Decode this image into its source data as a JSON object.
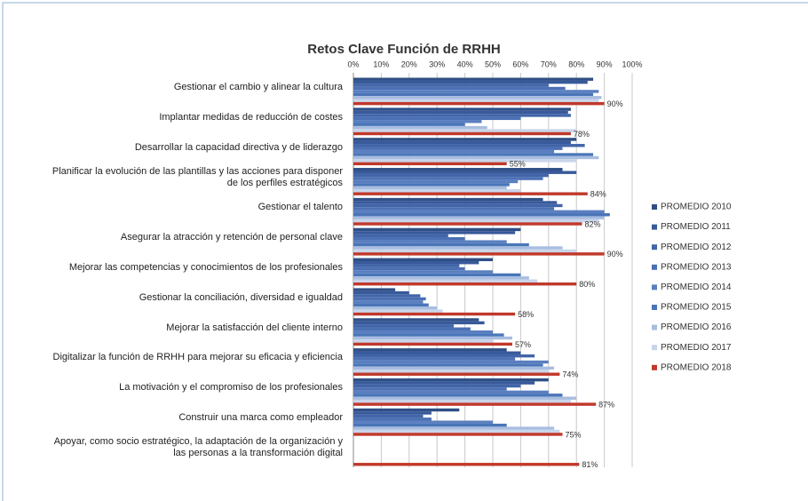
{
  "chart_data": {
    "type": "hbar",
    "title": "Retos Clave Función de RRHH",
    "categories": [
      "Gestionar el cambio y alinear la cultura",
      "Implantar medidas de reducción de costes",
      "Desarrollar la capacidad directiva y de liderazgo",
      "Planificar la evolución de las plantillas y las acciones para disponer de los perfiles estratégicos",
      "Gestionar el talento",
      "Asegurar la atracción y retención de personal clave",
      "Mejorar las competencias y conocimientos de los profesionales",
      "Gestionar la conciliación, diversidad e igualdad",
      "Mejorar la satisfacción del cliente interno",
      "Digitalizar la función de RRHH para mejorar su eficacia y eficiencia",
      "La motivación y el compromiso de los profesionales",
      "Construir una marca como empleador",
      "Apoyar, como socio estratégico, la adaptación de la organización y las personas a la transformación digital"
    ],
    "series": [
      {
        "name": "PROMEDIO 2010",
        "color": "#2f4f86",
        "values": [
          86,
          78,
          80,
          75,
          68,
          60,
          50,
          15,
          45,
          55,
          70,
          38,
          null
        ]
      },
      {
        "name": "PROMEDIO 2011",
        "color": "#38599a",
        "values": [
          84,
          77,
          78,
          80,
          73,
          58,
          45,
          20,
          47,
          60,
          65,
          28,
          null
        ]
      },
      {
        "name": "PROMEDIO 2012",
        "color": "#4265a8",
        "values": [
          70,
          78,
          83,
          70,
          75,
          34,
          38,
          24,
          36,
          65,
          60,
          25,
          null
        ]
      },
      {
        "name": "PROMEDIO 2013",
        "color": "#4c70b4",
        "values": [
          76,
          60,
          75,
          68,
          72,
          40,
          40,
          26,
          42,
          58,
          55,
          28,
          null
        ]
      },
      {
        "name": "PROMEDIO 2014",
        "color": "#5a7fc0",
        "values": [
          88,
          46,
          72,
          59,
          90,
          55,
          50,
          25,
          50,
          70,
          70,
          50,
          null
        ]
      },
      {
        "name": "PROMEDIO 2015",
        "color": "#4a76b8",
        "values": [
          86,
          40,
          86,
          56,
          92,
          63,
          60,
          27,
          54,
          68,
          75,
          55,
          null
        ]
      },
      {
        "name": "PROMEDIO 2016",
        "color": "#a8bde0",
        "values": [
          89,
          48,
          88,
          55,
          90,
          75,
          63,
          30,
          57,
          72,
          80,
          72,
          null
        ]
      },
      {
        "name": "PROMEDIO 2017",
        "color": "#c9d5ea",
        "values": [
          88,
          80,
          80,
          60,
          88,
          80,
          66,
          32,
          50,
          70,
          78,
          74,
          null
        ]
      },
      {
        "name": "PROMEDIO 2018",
        "color": "#c0392b",
        "values": [
          90,
          78,
          55,
          84,
          82,
          90,
          80,
          58,
          57,
          74,
          87,
          75,
          81
        ],
        "value_labels": [
          "90%",
          "78%",
          "55%",
          "84%",
          "82%",
          "90%",
          "80%",
          "58%",
          "57%",
          "74%",
          "87%",
          "75%",
          "81%"
        ]
      }
    ],
    "xlim": [
      0,
      100
    ],
    "xticks": [
      {
        "value": 0,
        "label": "0%"
      },
      {
        "value": 10,
        "label": "10%"
      },
      {
        "value": 20,
        "label": "20%"
      },
      {
        "value": 30,
        "label": "30%"
      },
      {
        "value": 40,
        "label": "40%"
      },
      {
        "value": 50,
        "label": "50%"
      },
      {
        "value": 60,
        "label": "60%"
      },
      {
        "value": 70,
        "label": "70%"
      },
      {
        "value": 80,
        "label": "80%"
      },
      {
        "value": 90,
        "label": "90%"
      },
      {
        "value": 100,
        "label": "100%"
      }
    ],
    "grid": true,
    "legend": "right"
  }
}
